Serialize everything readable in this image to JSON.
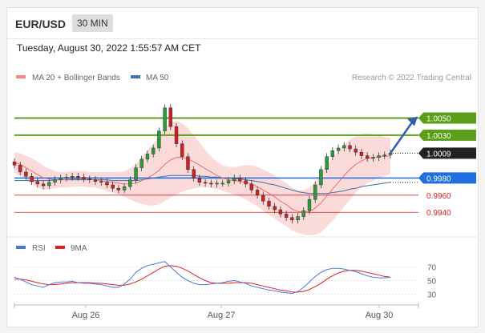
{
  "header": {
    "pair": "EUR/USD",
    "timeframe": "30 MIN"
  },
  "datetime": "Tuesday, August 30, 2022 1:55:57 AM CET",
  "legend": {
    "ma20": "MA 20 + Bollinger Bands",
    "ma50": "MA 50",
    "copyright": "Research © 2022 Trading Central"
  },
  "rsi_legend": {
    "rsi": "RSI",
    "ma9": "9MA"
  },
  "colors": {
    "ma20": "#e05a5a",
    "band": "#fbd6d6",
    "ma50": "#3a6fb0",
    "resistance": "#5a9e1a",
    "current": "#222222",
    "pivot": "#1f6fe0",
    "support": "#e02020",
    "candle_up": "#2a9a3a",
    "candle_down": "#cc2222",
    "arrow": "#2f5fa8",
    "rsi": "#4a78d8",
    "rsi_ma": "#e02020"
  },
  "chart_data": [
    {
      "type": "line",
      "title": "EUR/USD",
      "x_labels": [
        "Aug 26",
        "Aug 27",
        "Aug 30"
      ],
      "ylim": [
        0.9915,
        1.0085
      ],
      "levels": [
        {
          "label": "1.0050",
          "value": 1.005,
          "kind": "resistance"
        },
        {
          "label": "1.0030",
          "value": 1.003,
          "kind": "resistance"
        },
        {
          "label": "1.0009",
          "value": 1.0009,
          "kind": "current"
        },
        {
          "label": "0.9980",
          "value": 0.998,
          "kind": "pivot"
        },
        {
          "label": "0.9960",
          "value": 0.996,
          "kind": "support"
        },
        {
          "label": "0.9940",
          "value": 0.994,
          "kind": "support"
        }
      ],
      "close_series": [
        0.9995,
        0.9987,
        0.9982,
        0.9976,
        0.9973,
        0.9971,
        0.9975,
        0.9978,
        0.998,
        0.9981,
        0.9982,
        0.9981,
        0.9979,
        0.9978,
        0.9976,
        0.9975,
        0.9972,
        0.9968,
        0.9966,
        0.997,
        0.9978,
        0.9992,
        1.0002,
        1.0008,
        1.0015,
        1.0035,
        1.0062,
        1.004,
        1.002,
        1.0005,
        0.999,
        0.998,
        0.9975,
        0.9974,
        0.9973,
        0.9974,
        0.9974,
        0.9977,
        0.998,
        0.9977,
        0.9973,
        0.9966,
        0.996,
        0.9953,
        0.9947,
        0.9943,
        0.9938,
        0.9934,
        0.9931,
        0.9935,
        0.9942,
        0.9955,
        0.9972,
        0.999,
        1.0005,
        1.0012,
        1.0015,
        1.0018,
        1.0014,
        1.001,
        1.0006,
        1.0003,
        1.0004,
        1.0006,
        1.0007,
        1.0009
      ],
      "ma20_series": [
        0.9998,
        0.9996,
        0.9992,
        0.9988,
        0.9984,
        0.998,
        0.9979,
        0.9978,
        0.9978,
        0.9978,
        0.9979,
        0.9979,
        0.9979,
        0.9978,
        0.9978,
        0.9977,
        0.9976,
        0.9975,
        0.9974,
        0.9973,
        0.9973,
        0.9974,
        0.9977,
        0.998,
        0.9984,
        0.9989,
        0.9996,
        1.0001,
        1.0004,
        1.0004,
        1.0002,
        0.9999,
        0.9995,
        0.9991,
        0.9987,
        0.9983,
        0.998,
        0.9978,
        0.9977,
        0.9976,
        0.9975,
        0.9973,
        0.997,
        0.9966,
        0.9962,
        0.9958,
        0.9953,
        0.9949,
        0.9944,
        0.9941,
        0.994,
        0.9941,
        0.9945,
        0.9951,
        0.9959,
        0.9967,
        0.9975,
        0.9983,
        0.999,
        0.9996,
        1.0,
        1.0003,
        1.0004,
        1.0005,
        1.0005,
        1.0006
      ],
      "ma50_series": [
        0.9977,
        0.9977,
        0.9977,
        0.9977,
        0.9977,
        0.9977,
        0.9977,
        0.9978,
        0.9978,
        0.9978,
        0.9978,
        0.9978,
        0.9978,
        0.9978,
        0.9978,
        0.9978,
        0.9978,
        0.9977,
        0.9977,
        0.9977,
        0.9977,
        0.9977,
        0.9978,
        0.9979,
        0.998,
        0.9981,
        0.9982,
        0.9983,
        0.9983,
        0.9983,
        0.9983,
        0.9983,
        0.9982,
        0.9982,
        0.9981,
        0.9981,
        0.998,
        0.998,
        0.9979,
        0.9979,
        0.9978,
        0.9977,
        0.9976,
        0.9975,
        0.9973,
        0.9972,
        0.997,
        0.9968,
        0.9966,
        0.9964,
        0.9963,
        0.9962,
        0.9962,
        0.9962,
        0.9962,
        0.9963,
        0.9964,
        0.9965,
        0.9967,
        0.9968,
        0.997,
        0.9971,
        0.9972,
        0.9973,
        0.9974,
        0.9975
      ],
      "band_width": [
        0.0012,
        0.0013,
        0.0014,
        0.0015,
        0.0015,
        0.0014,
        0.0012,
        0.001,
        0.0009,
        0.0009,
        0.0009,
        0.0009,
        0.0009,
        0.0009,
        0.0009,
        0.001,
        0.0011,
        0.0012,
        0.0013,
        0.0015,
        0.0018,
        0.0022,
        0.0027,
        0.0032,
        0.0036,
        0.004,
        0.0043,
        0.0044,
        0.0043,
        0.004,
        0.0036,
        0.0031,
        0.0026,
        0.0022,
        0.0018,
        0.0016,
        0.0015,
        0.0015,
        0.0016,
        0.0018,
        0.002,
        0.0022,
        0.0023,
        0.0024,
        0.0025,
        0.0025,
        0.0025,
        0.0025,
        0.0025,
        0.0025,
        0.0026,
        0.0028,
        0.0031,
        0.0034,
        0.0036,
        0.0037,
        0.0037,
        0.0036,
        0.0035,
        0.0033,
        0.0031,
        0.0029,
        0.0027,
        0.0025,
        0.0023,
        0.0021
      ],
      "projection_target": 1.005
    },
    {
      "type": "line",
      "title": "RSI",
      "x_labels": [
        "Aug 26",
        "Aug 27",
        "Aug 30"
      ],
      "ylim": [
        20,
        80
      ],
      "y_ticks": [
        "70",
        "50",
        "30"
      ],
      "rsi_series": [
        55,
        52,
        48,
        44,
        42,
        40,
        44,
        47,
        48,
        48,
        49,
        47,
        46,
        46,
        45,
        44,
        42,
        40,
        40,
        45,
        52,
        62,
        68,
        72,
        74,
        76,
        78,
        70,
        62,
        55,
        50,
        46,
        44,
        44,
        45,
        46,
        47,
        49,
        50,
        48,
        46,
        42,
        40,
        38,
        36,
        35,
        33,
        32,
        31,
        34,
        40,
        48,
        56,
        62,
        66,
        68,
        68,
        67,
        65,
        63,
        60,
        57,
        55,
        54,
        54,
        55
      ],
      "rsi_ma_series": [
        52,
        52,
        51,
        49,
        47,
        45,
        44,
        44,
        45,
        46,
        47,
        47,
        47,
        47,
        46,
        46,
        45,
        44,
        43,
        43,
        45,
        48,
        52,
        57,
        62,
        67,
        71,
        72,
        71,
        68,
        64,
        59,
        54,
        50,
        47,
        46,
        46,
        46,
        47,
        47,
        47,
        46,
        44,
        42,
        40,
        38,
        36,
        35,
        33,
        33,
        34,
        37,
        41,
        46,
        52,
        57,
        61,
        64,
        65,
        65,
        64,
        62,
        60,
        58,
        56,
        55
      ]
    }
  ]
}
